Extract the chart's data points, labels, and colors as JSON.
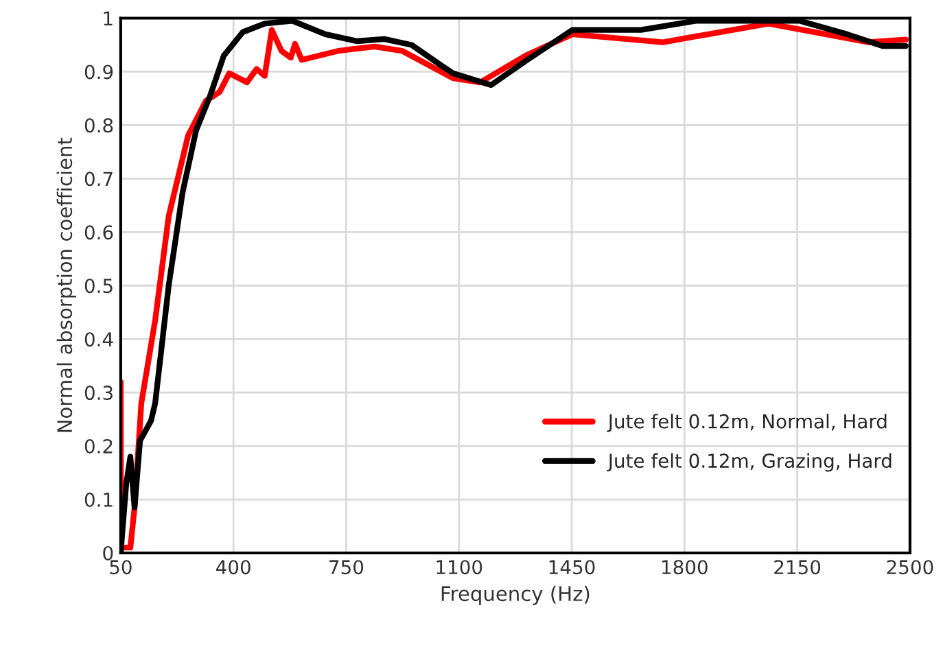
{
  "chart_data": {
    "type": "line",
    "xlabel": "Frequency (Hz)",
    "ylabel": "Normal absorption coefficient",
    "xlim": [
      50,
      2500
    ],
    "xticks": [
      50,
      400,
      750,
      1100,
      1450,
      1800,
      2150,
      2500
    ],
    "ylim": [
      0,
      1
    ],
    "yticks": [
      0,
      0.1,
      0.2,
      0.3,
      0.4,
      0.5,
      0.6,
      0.7,
      0.8,
      0.9,
      1
    ],
    "grid": true,
    "legend": "lower right",
    "marker": "none",
    "line_style": "solid",
    "series": [
      {
        "name": "Jute felt 0.12m, Normal, Hard",
        "color": "#ff0000",
        "x": [
          50,
          51,
          80,
          93,
          114,
          157,
          199,
          259,
          314,
          357,
          387,
          442,
          472,
          497,
          519,
          549,
          578,
          591,
          612,
          727,
          838,
          923,
          1081,
          1166,
          1307,
          1452,
          1733,
          2061,
          2372,
          2487
        ],
        "values": [
          0.32,
          0.01,
          0.01,
          0.085,
          0.28,
          0.435,
          0.63,
          0.78,
          0.845,
          0.862,
          0.897,
          0.88,
          0.905,
          0.892,
          0.978,
          0.939,
          0.926,
          0.952,
          0.922,
          0.939,
          0.947,
          0.939,
          0.888,
          0.88,
          0.93,
          0.97,
          0.955,
          0.99,
          0.955,
          0.96
        ]
      },
      {
        "name": "Jute felt 0.12m, Grazing, Hard",
        "color": "#000000",
        "x": [
          50,
          67,
          80,
          93,
          110,
          144,
          157,
          199,
          242,
          284,
          327,
          370,
          429,
          497,
          583,
          685,
          783,
          868,
          953,
          1039,
          1081,
          1200,
          1307,
          1452,
          1665,
          1835,
          2159,
          2304,
          2415,
          2487
        ],
        "values": [
          0.0,
          0.128,
          0.18,
          0.085,
          0.21,
          0.247,
          0.28,
          0.5,
          0.674,
          0.79,
          0.854,
          0.93,
          0.974,
          0.99,
          0.995,
          0.97,
          0.957,
          0.961,
          0.95,
          0.914,
          0.897,
          0.875,
          0.92,
          0.978,
          0.978,
          0.995,
          0.995,
          0.97,
          0.948,
          0.948
        ]
      }
    ]
  }
}
